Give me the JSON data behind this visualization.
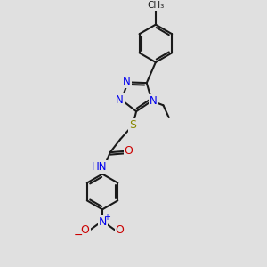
{
  "bg_color": "#e0e0e0",
  "bond_color": "#1a1a1a",
  "n_color": "#0000ee",
  "o_color": "#cc0000",
  "s_color": "#888800",
  "lw": 1.5,
  "fs": 8.5,
  "xlim": [
    0,
    10
  ],
  "ylim": [
    0,
    12
  ]
}
